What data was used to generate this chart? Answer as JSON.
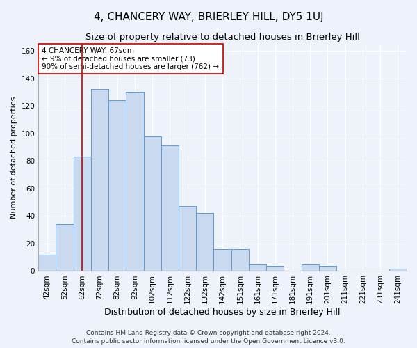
{
  "title": "4, CHANCERY WAY, BRIERLEY HILL, DY5 1UJ",
  "subtitle": "Size of property relative to detached houses in Brierley Hill",
  "xlabel": "Distribution of detached houses by size in Brierley Hill",
  "ylabel": "Number of detached properties",
  "footer_line1": "Contains HM Land Registry data © Crown copyright and database right 2024.",
  "footer_line2": "Contains public sector information licensed under the Open Government Licence v3.0.",
  "categories": [
    "42sqm",
    "52sqm",
    "62sqm",
    "72sqm",
    "82sqm",
    "92sqm",
    "102sqm",
    "112sqm",
    "122sqm",
    "132sqm",
    "142sqm",
    "151sqm",
    "161sqm",
    "171sqm",
    "181sqm",
    "191sqm",
    "201sqm",
    "211sqm",
    "221sqm",
    "231sqm",
    "241sqm"
  ],
  "values": [
    12,
    34,
    83,
    132,
    124,
    130,
    98,
    91,
    47,
    42,
    16,
    16,
    5,
    4,
    0,
    5,
    4,
    0,
    0,
    0,
    2
  ],
  "bar_color": "#c9d9f0",
  "bar_edge_color": "#5b9bd5",
  "vline_x": 2,
  "vline_color": "#cc0000",
  "annotation_line1": "4 CHANCERY WAY: 67sqm",
  "annotation_line2": "← 9% of detached houses are smaller (73)",
  "annotation_line3": "90% of semi-detached houses are larger (762) →",
  "annotation_box_color": "#ffffff",
  "annotation_box_edge_color": "#cc0000",
  "ylim": [
    0,
    165
  ],
  "yticks": [
    0,
    20,
    40,
    60,
    80,
    100,
    120,
    140,
    160
  ],
  "background_color": "#eef2fb",
  "plot_background": "#eef2fb",
  "grid_color": "#ffffff",
  "title_fontsize": 11,
  "subtitle_fontsize": 9.5,
  "ylabel_fontsize": 8,
  "xlabel_fontsize": 9,
  "tick_fontsize": 7.5,
  "annotation_fontsize": 7.5,
  "footer_fontsize": 6.5
}
